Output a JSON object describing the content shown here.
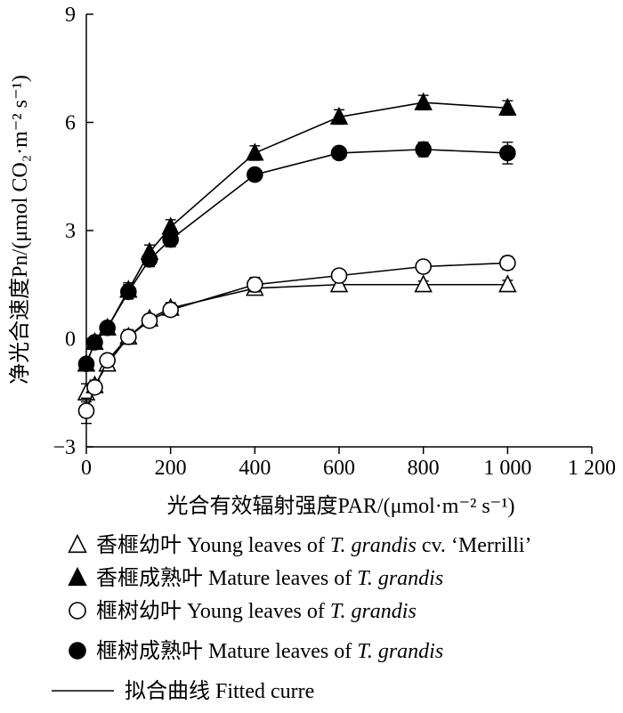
{
  "chart_data": {
    "type": "scatter",
    "title": "",
    "xlabel": "光合有效辐射强度PAR/(μmol·m⁻² s⁻¹)",
    "ylabel": "净光合速度Pn/(μmol CO₂·m⁻² s⁻¹)",
    "xlim": [
      0,
      1200
    ],
    "ylim": [
      -3,
      9
    ],
    "xticks": [
      0,
      200,
      400,
      600,
      800,
      1000,
      1200
    ],
    "yticks": [
      -3,
      0,
      3,
      6,
      9
    ],
    "xtick_labels": [
      "0",
      "200",
      "400",
      "600",
      "800",
      "1 000",
      "1 200"
    ],
    "ytick_labels": [
      "−3",
      "0",
      "3",
      "6",
      "9"
    ],
    "x": [
      0,
      20,
      50,
      100,
      150,
      200,
      400,
      600,
      800,
      1000
    ],
    "series": [
      {
        "name": "香榧幼叶 Young leaves of T. grandis cv. ‘Merrilli’",
        "marker": "triangle-open",
        "values": [
          -1.5,
          -1.3,
          -0.7,
          0.05,
          0.55,
          0.85,
          1.4,
          1.5,
          1.5,
          1.5
        ],
        "errors": [
          0.25,
          0.15,
          0.15,
          0.15,
          0.12,
          0.15,
          0.18,
          0.12,
          0.1,
          0.12
        ]
      },
      {
        "name": "香榧成熟叶 Mature leaves of T. grandis",
        "marker": "triangle-filled",
        "values": [
          -0.7,
          -0.1,
          0.3,
          1.35,
          2.4,
          3.1,
          5.15,
          6.15,
          6.55,
          6.4
        ],
        "errors": [
          0.15,
          0.1,
          0.15,
          0.2,
          0.2,
          0.2,
          0.2,
          0.2,
          0.2,
          0.2
        ]
      },
      {
        "name": "榧树幼叶 Young leaves of T. grandis",
        "marker": "circle-open",
        "values": [
          -2.0,
          -1.35,
          -0.6,
          0.05,
          0.5,
          0.8,
          1.5,
          1.75,
          2.0,
          2.1
        ],
        "errors": [
          0.35,
          0.15,
          0.15,
          0.2,
          0.12,
          0.15,
          0.2,
          0.15,
          0.15,
          0.18
        ]
      },
      {
        "name": "榧树成熟叶 Mature leaves of T. grandis",
        "marker": "circle-filled",
        "values": [
          -0.7,
          -0.1,
          0.3,
          1.3,
          2.2,
          2.75,
          4.55,
          5.15,
          5.25,
          5.15
        ],
        "errors": [
          0.15,
          0.1,
          0.15,
          0.2,
          0.2,
          0.2,
          0.15,
          0.12,
          0.2,
          0.3
        ]
      }
    ],
    "fitted_curve_label": "拟合曲线 Fitted curre",
    "legend_position": "bottom"
  },
  "legend": {
    "items": [
      {
        "marker": "triangle-open",
        "cn": "香榧幼叶",
        "en": " Young leaves of ",
        "it": "T. grandis",
        "tail": " cv. ‘Merrilli’"
      },
      {
        "marker": "triangle-filled",
        "cn": "香榧成熟叶",
        "en": " Mature leaves of ",
        "it": "T. grandis",
        "tail": ""
      },
      {
        "marker": "circle-open",
        "cn": "榧树幼叶",
        "en": " Young leaves of ",
        "it": "T. grandis",
        "tail": ""
      },
      {
        "marker": "circle-filled",
        "cn": "榧树成熟叶",
        "en": " Mature leaves of ",
        "it": "T. grandis",
        "tail": ""
      }
    ],
    "line_label": "拟合曲线 Fitted curre"
  },
  "colors": {
    "ink": "#000000",
    "background": "#ffffff"
  }
}
